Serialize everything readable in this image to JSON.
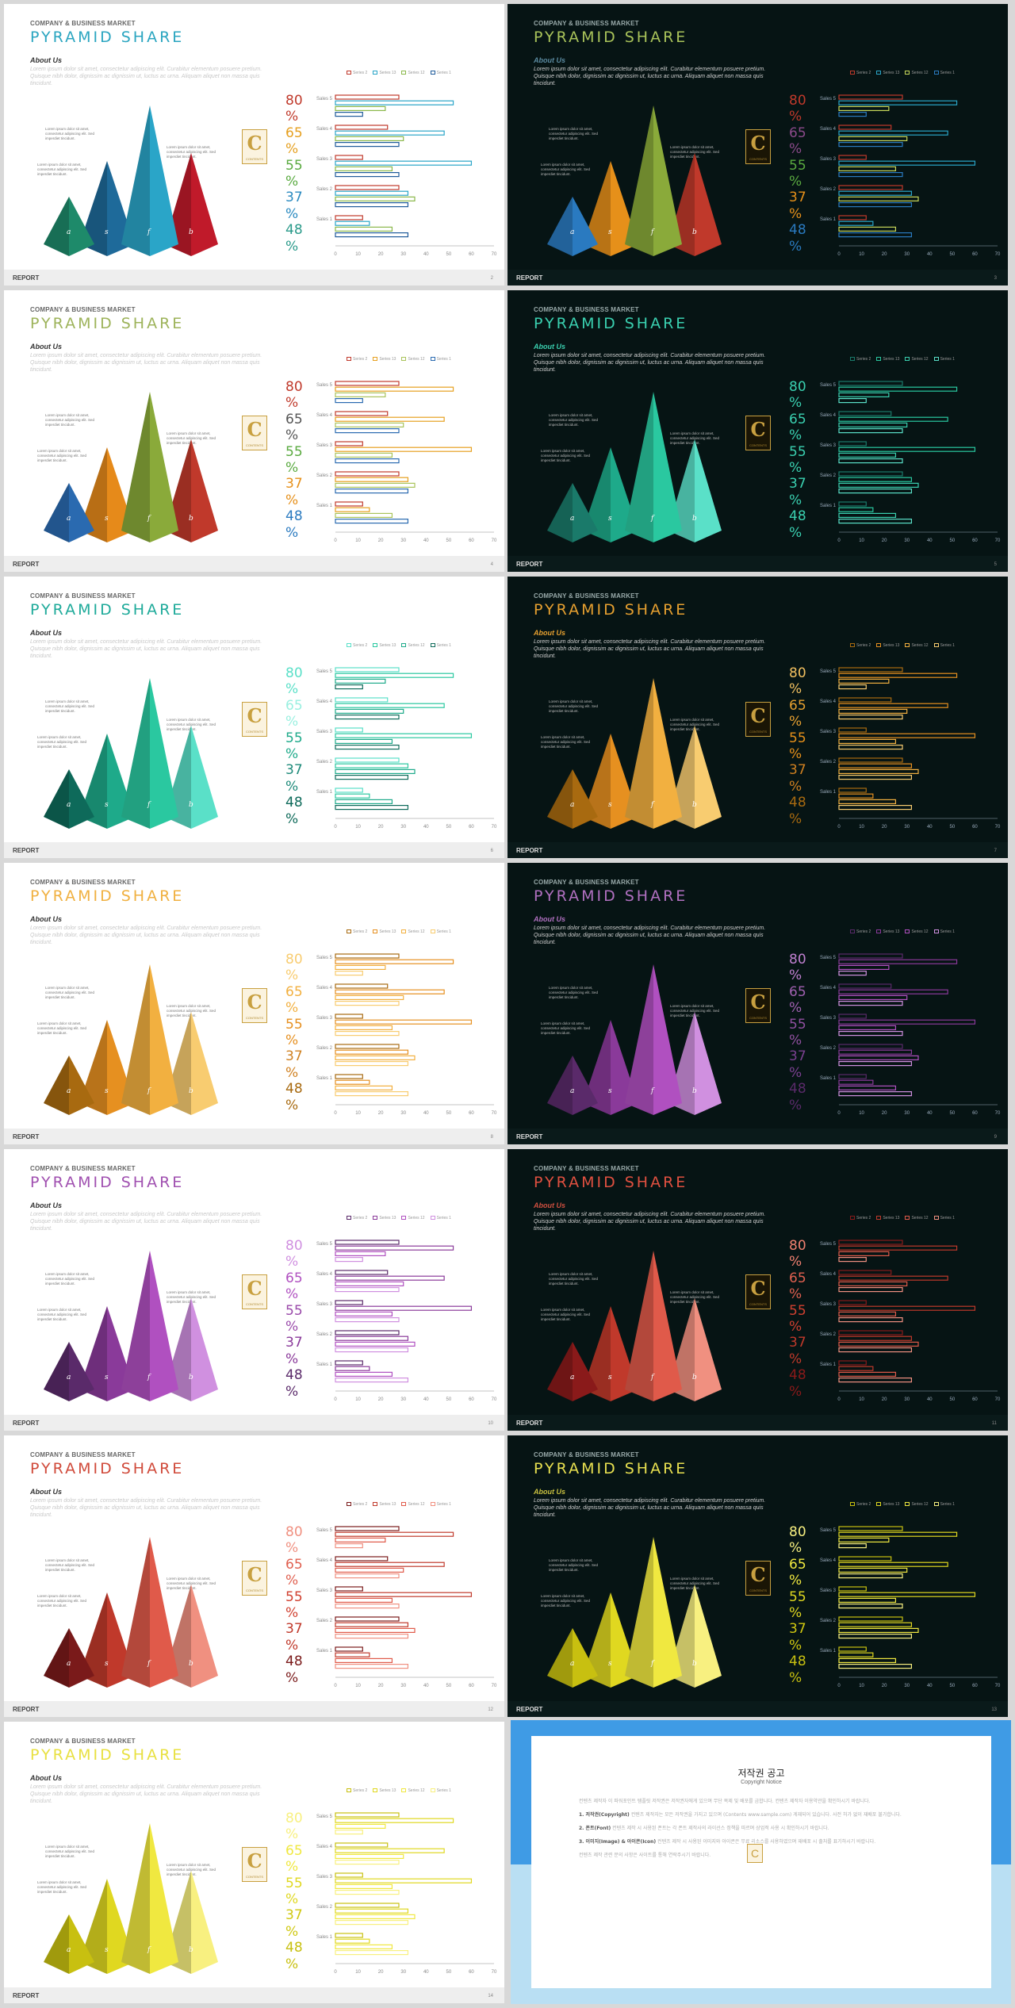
{
  "company": "COMPANY & BUSINESS MARKET",
  "title": "PYRAMID SHARE",
  "about": "About Us",
  "lorem": "Lorem ipsum dolor sit amet, consectetur adipiscing elit. Curabitur elementum posuere pretium. Quisque nibh dolor, dignissim ac dignissim ut, luctus ac urna. Aliquam aliquet non massa quis tincidunt.",
  "annotation": "Lorem ipsum dolor sit amet, consectetur adipiscing elit. Sed imperdiet tincidunt.",
  "peak_labels": [
    "a",
    "s",
    "f",
    "b"
  ],
  "percents": [
    "80",
    "65",
    "55",
    "37",
    "48"
  ],
  "percent_sign": "%",
  "logo_letter": "C",
  "logo_text": "CONTENTS",
  "footer": "REPORT",
  "legend": [
    "Series 2",
    "Series 13",
    "Series 12",
    "Series 1"
  ],
  "chart_data": {
    "type": "bar",
    "orientation": "horizontal",
    "categories": [
      "Sales 5",
      "Sales 4",
      "Sales 3",
      "Sales 2",
      "Sales 1"
    ],
    "series": [
      {
        "name": "Series 2",
        "values": [
          28,
          23,
          12,
          28,
          12
        ]
      },
      {
        "name": "Series 13",
        "values": [
          52,
          48,
          60,
          32,
          15
        ]
      },
      {
        "name": "Series 12",
        "values": [
          22,
          30,
          25,
          35,
          25
        ]
      },
      {
        "name": "Series 1",
        "values": [
          12,
          28,
          28,
          32,
          32
        ]
      }
    ],
    "xlim": [
      0,
      70
    ],
    "xticks": [
      "0",
      "10",
      "20",
      "30",
      "40",
      "50",
      "60",
      "70"
    ]
  },
  "slides": [
    {
      "page": "2",
      "theme": "light",
      "title_color": "#2aa5c0",
      "about_color": "#333333",
      "peaks": [
        "#1e8a6a",
        "#1e6a9a",
        "#2aa5c8",
        "#c01a2a"
      ],
      "pct_colors": [
        "#c0392b",
        "#e6a020",
        "#5aaa40",
        "#2a8ac0",
        "#2a9a8a"
      ],
      "series_colors": [
        "#c0392b",
        "#2aa5c8",
        "#8ab84a",
        "#1e5a9a"
      ]
    },
    {
      "page": "3",
      "theme": "dark",
      "title_color": "#a9c35a",
      "about_color": "#5b8aa0",
      "peaks": [
        "#2a7ac0",
        "#e6901a",
        "#8aaa3a",
        "#c0392b"
      ],
      "pct_colors": [
        "#c0392b",
        "#8b4a8a",
        "#5aaa40",
        "#e6901a",
        "#2a7ac0"
      ],
      "series_colors": [
        "#c0392b",
        "#2aa5c8",
        "#c8d85a",
        "#2a7ac0"
      ]
    },
    {
      "page": "4",
      "theme": "light",
      "title_color": "#9db35a",
      "about_color": "#333333",
      "peaks": [
        "#2a6ab0",
        "#e68a1a",
        "#8aaa3a",
        "#c0392b"
      ],
      "pct_colors": [
        "#c0392b",
        "#555555",
        "#5aaa40",
        "#e6901a",
        "#2a7ac0"
      ],
      "series_colors": [
        "#c0392b",
        "#e6a020",
        "#a9c35a",
        "#2a6ab0"
      ]
    },
    {
      "page": "5",
      "theme": "dark",
      "title_color": "#3ad0b0",
      "about_color": "#3ad0b0",
      "peaks": [
        "#1a7a6a",
        "#1eaa8a",
        "#2ac8a0",
        "#5ae0c8"
      ],
      "pct_colors": [
        "#3ad0b0",
        "#3ad0b0",
        "#3ad0b0",
        "#3ad0b0",
        "#3ad0b0"
      ],
      "series_colors": [
        "#1a7a6a",
        "#2ac8a0",
        "#3ad0b0",
        "#5ae0c8"
      ]
    },
    {
      "page": "6",
      "theme": "light",
      "title_color": "#1eaa9a",
      "about_color": "#333333",
      "peaks": [
        "#0e6a5a",
        "#1eaa8a",
        "#2ac8a0",
        "#5ae0c8"
      ],
      "pct_colors": [
        "#5ae0c8",
        "#9af0e0",
        "#1eaa8a",
        "#1e8a7a",
        "#0e6a5a"
      ],
      "series_colors": [
        "#5ae0c8",
        "#2ac8a0",
        "#1eaa8a",
        "#0e6a5a"
      ]
    },
    {
      "page": "7",
      "theme": "dark",
      "title_color": "#e6a030",
      "about_color": "#e6a030",
      "peaks": [
        "#a86a10",
        "#e69020",
        "#f2b040",
        "#f8cc70"
      ],
      "pct_colors": [
        "#f2c060",
        "#e6a030",
        "#e6901a",
        "#d08020",
        "#a86a10"
      ],
      "series_colors": [
        "#a86a10",
        "#e69020",
        "#f2b040",
        "#f8cc70"
      ]
    },
    {
      "page": "8",
      "theme": "light",
      "title_color": "#f0b040",
      "about_color": "#333333",
      "peaks": [
        "#a86a10",
        "#e69020",
        "#f2b040",
        "#f8cc70"
      ],
      "pct_colors": [
        "#f8cc70",
        "#f2b040",
        "#e69020",
        "#d08020",
        "#a86a10"
      ],
      "series_colors": [
        "#a86a10",
        "#e69020",
        "#f2b040",
        "#f8cc70"
      ]
    },
    {
      "page": "9",
      "theme": "dark",
      "title_color": "#b070c0",
      "about_color": "#b070c0",
      "peaks": [
        "#5a2a6a",
        "#8a3a9a",
        "#b050c0",
        "#d090e0"
      ],
      "pct_colors": [
        "#c080d0",
        "#a060b0",
        "#9050a0",
        "#7a4090",
        "#5a2a6a"
      ],
      "series_colors": [
        "#5a2a6a",
        "#8a3a9a",
        "#b050c0",
        "#d090e0"
      ]
    },
    {
      "page": "10",
      "theme": "light",
      "title_color": "#a050b0",
      "about_color": "#333333",
      "peaks": [
        "#5a2a6a",
        "#8a3a9a",
        "#b050c0",
        "#d090e0"
      ],
      "pct_colors": [
        "#d090e0",
        "#b050c0",
        "#9a4aaa",
        "#8a3a9a",
        "#5a2a6a"
      ],
      "series_colors": [
        "#5a2a6a",
        "#8a3a9a",
        "#b050c0",
        "#d090e0"
      ]
    },
    {
      "page": "11",
      "theme": "dark",
      "title_color": "#e05040",
      "about_color": "#d05040",
      "peaks": [
        "#8a1a1a",
        "#c0392b",
        "#e05a4a",
        "#f09080"
      ],
      "pct_colors": [
        "#f08070",
        "#e06050",
        "#d04030",
        "#c0392b",
        "#8a1a1a"
      ],
      "series_colors": [
        "#8a1a1a",
        "#c0392b",
        "#e05a4a",
        "#f09080"
      ]
    },
    {
      "page": "12",
      "theme": "light",
      "title_color": "#d04a3a",
      "about_color": "#333333",
      "peaks": [
        "#7a1a1a",
        "#c0392b",
        "#e05a4a",
        "#f09080"
      ],
      "pct_colors": [
        "#f09080",
        "#e06050",
        "#d04030",
        "#c0392b",
        "#7a1a1a"
      ],
      "series_colors": [
        "#7a1a1a",
        "#c0392b",
        "#e05a4a",
        "#f09080"
      ]
    },
    {
      "page": "13",
      "theme": "dark",
      "title_color": "#e8e050",
      "about_color": "#c8c040",
      "peaks": [
        "#c8c010",
        "#e0d820",
        "#f0e840",
        "#f8f080"
      ],
      "pct_colors": [
        "#f8f080",
        "#f0e840",
        "#e0d820",
        "#d0c810",
        "#c8c010"
      ],
      "series_colors": [
        "#c8c010",
        "#e0d820",
        "#f0e840",
        "#f8f080"
      ]
    },
    {
      "page": "14",
      "theme": "light",
      "title_color": "#e8e040",
      "about_color": "#333333",
      "peaks": [
        "#c8c010",
        "#e0d820",
        "#f0e840",
        "#f8f080"
      ],
      "pct_colors": [
        "#f8f080",
        "#f0e840",
        "#e0d820",
        "#d0c810",
        "#c8c010"
      ],
      "series_colors": [
        "#c8c010",
        "#e0d820",
        "#f0e840",
        "#f8f080"
      ]
    }
  ],
  "notice": {
    "title": "저작권 공고",
    "subtitle": "Copyright Notice",
    "intro": "컨텐츠 제작자 이 파워포인트 템플릿 저작권은 저작권자에게 있으며 무단 복제 및 배포를 금합니다. 컨텐츠 제작자 이용약관을 확인하시기 바랍니다.",
    "items": [
      {
        "head": "1. 저작권(Copyright)",
        "text": "컨텐츠 제작자는 모든 저작권을 가지고 있으며 (Contents www.sample.com) 게재되어 있습니다. 사전 허가 없이 재배포 불가합니다."
      },
      {
        "head": "2. 폰트(Font)",
        "text": "컨텐츠 제작 시 사용된 폰트는 각 폰트 제작사의 라이선스 정책을 따르며 상업적 사용 시 확인하시기 바랍니다."
      },
      {
        "head": "3. 이미지(Image) & 아이콘(Icon)",
        "text": "컨텐츠 제작 시 사용된 이미지와 아이콘은 무료 리소스를 사용하였으며 재배포 시 출처를 표기하시기 바랍니다."
      }
    ],
    "closing": "컨텐츠 제작 관련 문의 사항은 사이트를 통해 연락주시기 바랍니다.",
    "logo_letter": "C"
  }
}
